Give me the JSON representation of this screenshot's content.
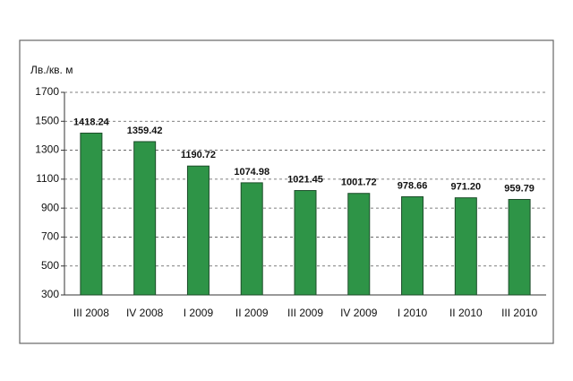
{
  "chart_data": {
    "type": "bar",
    "y_label": "Лв./кв. м",
    "categories": [
      "III 2008",
      "IV 2008",
      "I 2009",
      "II 2009",
      "III 2009",
      "IV 2009",
      "I 2010",
      "II 2010",
      "III 2010"
    ],
    "values": [
      1418.24,
      1359.42,
      1190.72,
      1074.98,
      1021.45,
      1001.72,
      978.66,
      971.2,
      959.79
    ],
    "value_labels": [
      "1418.24",
      "1359.42",
      "1190.72",
      "1074.98",
      "1021.45",
      "1001.72",
      "978.66",
      "971.20",
      "959.79"
    ],
    "color": "#2e9447",
    "ylim": [
      300,
      1700
    ],
    "yticks": [
      300,
      500,
      700,
      900,
      1100,
      1300,
      1500,
      1700
    ],
    "grid": true
  }
}
